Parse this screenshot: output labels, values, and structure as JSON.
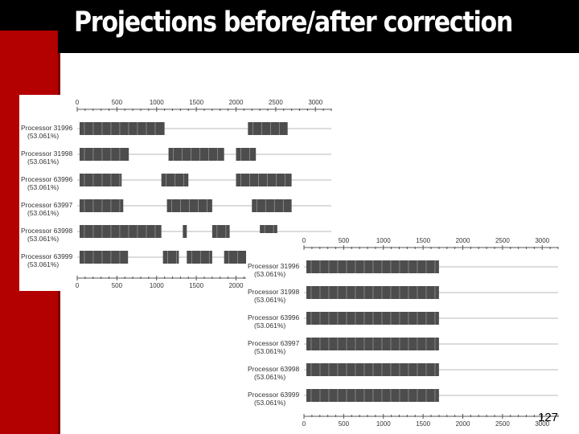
{
  "slide": {
    "title": "Projections before/after correction",
    "page_number": "127"
  },
  "colors": {
    "bar": "#4d4d4d",
    "bar_edge": "#dddddd",
    "axis": "#555555",
    "label": "#333333",
    "baseline": "#b8b8b8",
    "title_bg": "#000000",
    "accent_red": "#b30000"
  },
  "chart_data": [
    {
      "type": "timeline",
      "description_key": "before",
      "x_ticks": [
        "0",
        "500",
        "1000",
        "1500",
        "2000",
        "2500",
        "3000"
      ],
      "bottom_ticks": [
        "0",
        "500",
        "1000",
        "1500",
        "2000"
      ],
      "x_range": [
        0,
        3200
      ],
      "rows": [
        {
          "label": "Processor 31996",
          "pct": "(53.061%)",
          "segments": [
            [
              30,
              1100
            ],
            [
              2150,
              2650
            ]
          ]
        },
        {
          "label": "Processor 31998",
          "pct": "(53.061%)",
          "segments": [
            [
              30,
              650
            ],
            [
              1150,
              1850
            ],
            [
              2000,
              2250
            ]
          ]
        },
        {
          "label": "Processor 63996",
          "pct": "(53.061%)",
          "segments": [
            [
              30,
              560
            ],
            [
              1060,
              1400
            ],
            [
              2000,
              2700
            ]
          ]
        },
        {
          "label": "Processor 63997",
          "pct": "(53.061%)",
          "segments": [
            [
              30,
              580
            ],
            [
              1130,
              1700
            ],
            [
              2200,
              2700
            ]
          ]
        },
        {
          "label": "Processor 63998",
          "pct": "(53.061%)",
          "segments": [
            [
              30,
              1060
            ],
            [
              1330,
              1380
            ],
            [
              1700,
              1920
            ],
            [
              2300,
              2520
            ]
          ]
        },
        {
          "label": "Processor 63999",
          "pct": "(53.061%)",
          "segments": [
            [
              30,
              640
            ],
            [
              1080,
              1280
            ],
            [
              1380,
              1700
            ],
            [
              1850,
              2250
            ]
          ]
        }
      ]
    },
    {
      "type": "timeline",
      "description_key": "after",
      "x_ticks": [
        "0",
        "500",
        "1000",
        "1500",
        "2000",
        "2500",
        "3000"
      ],
      "bottom_ticks": [
        "0",
        "500",
        "1000",
        "1500",
        "2000",
        "2500",
        "3000"
      ],
      "x_range": [
        0,
        3200
      ],
      "rows": [
        {
          "label": "Processor 31996",
          "pct": "(53.061%)",
          "segments": [
            [
              30,
              1700
            ]
          ]
        },
        {
          "label": "Processor 31998",
          "pct": "(53.061%)",
          "segments": [
            [
              30,
              1700
            ]
          ]
        },
        {
          "label": "Processor 63996",
          "pct": "(53.061%)",
          "segments": [
            [
              30,
              1700
            ]
          ]
        },
        {
          "label": "Processor 63997",
          "pct": "(53.061%)",
          "segments": [
            [
              30,
              1700
            ]
          ]
        },
        {
          "label": "Processor 63998",
          "pct": "(53.061%)",
          "segments": [
            [
              30,
              1700
            ]
          ]
        },
        {
          "label": "Processor 63999",
          "pct": "(53.061%)",
          "segments": [
            [
              30,
              1700
            ]
          ]
        }
      ]
    }
  ]
}
